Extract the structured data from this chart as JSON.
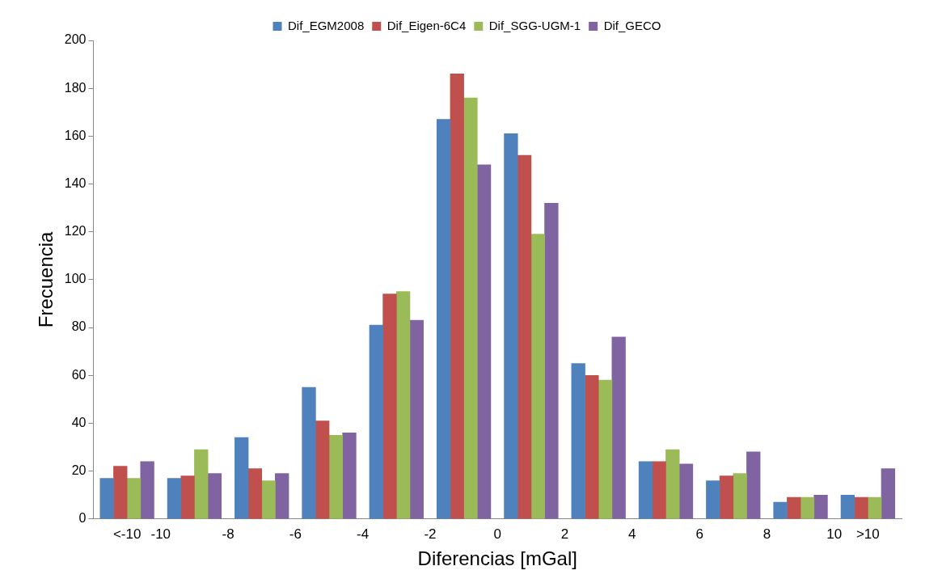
{
  "chart_data": {
    "type": "histogram",
    "xlabel": "Diferencias [mGal]",
    "ylabel": "Frecuencia",
    "bins": [
      -12,
      -10,
      -8,
      -6,
      -4,
      -2,
      0,
      2,
      4,
      6,
      8,
      10,
      12
    ],
    "series": [
      {
        "name": "Dif_EGM2008",
        "color": "#4f81bd",
        "values": [
          17,
          17,
          34,
          55,
          81,
          167,
          161,
          65,
          24,
          16,
          7,
          10
        ]
      },
      {
        "name": "Dif_Eigen-6C4",
        "color": "#c0504d",
        "values": [
          22,
          18,
          21,
          41,
          94,
          186,
          152,
          60,
          24,
          18,
          9,
          9
        ]
      },
      {
        "name": "Dif_SGG-UGM-1",
        "color": "#9bbb59",
        "values": [
          17,
          29,
          16,
          35,
          95,
          176,
          119,
          58,
          29,
          19,
          9,
          9
        ]
      },
      {
        "name": "Dif_GECO",
        "color": "#8064a2",
        "values": [
          24,
          19,
          19,
          36,
          83,
          148,
          132,
          76,
          23,
          28,
          10,
          21
        ]
      }
    ],
    "xlim": [
      -12,
      12
    ],
    "xticks": [
      {
        "value": -11,
        "label": "<-10"
      },
      -10,
      -8,
      -6,
      -4,
      -2,
      0,
      2,
      4,
      6,
      8,
      10,
      {
        "value": 11,
        "label": ">10"
      }
    ],
    "ylim": [
      0,
      200
    ],
    "yticks": [
      0,
      20,
      40,
      60,
      80,
      100,
      120,
      140,
      160,
      180,
      200
    ],
    "grid": false,
    "legend": "top"
  }
}
